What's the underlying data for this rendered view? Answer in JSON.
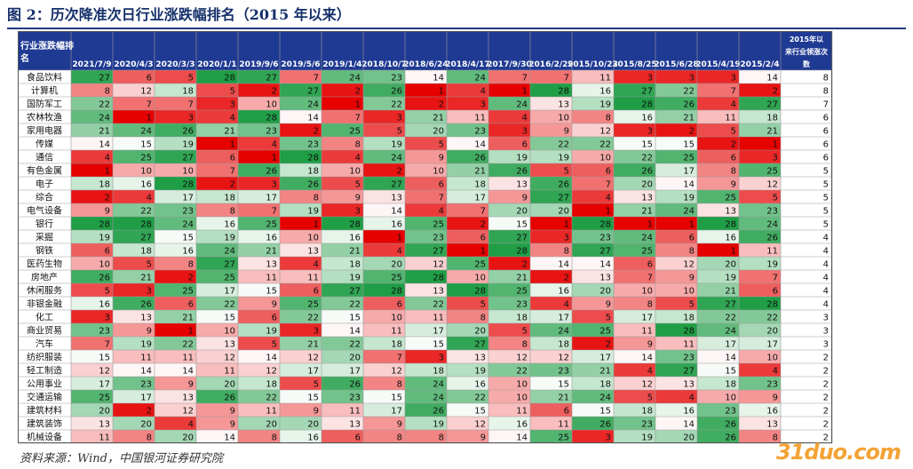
{
  "title": "图 2：历次降准次日行业涨跌幅排名（2015 年以来）",
  "source": "资料来源：Wind，中国银河证券研究院",
  "watermark": "31duo.com",
  "colors": {
    "header_bg": "#1f3a93",
    "rank_top": "#e60000",
    "rank_bottom": "#1f9e46",
    "rank_mid": "#ffffff"
  },
  "chart_data": {
    "type": "table",
    "corner_header": "行业涨跌幅排名",
    "last_header": "2015年以来行业领涨次数",
    "dates": [
      "2021/7/9",
      "2020/4/3",
      "2020/3/3",
      "2020/1/1",
      "2019/9/6",
      "2019/5/6",
      "2019/1/4",
      "2018/10/7",
      "2018/6/24",
      "2018/4/17",
      "2017/9/30",
      "2016/2/29",
      "2015/10/23",
      "2015/8/25",
      "2015/6/28",
      "2015/4/19",
      "2015/2/4"
    ],
    "rows": [
      {
        "industry": "食品饮料",
        "ranks": [
          27,
          6,
          5,
          28,
          27,
          7,
          24,
          23,
          14,
          24,
          7,
          7,
          11,
          3,
          3,
          3,
          14
        ],
        "count": 8
      },
      {
        "industry": "计算机",
        "ranks": [
          8,
          12,
          18,
          5,
          2,
          27,
          2,
          26,
          1,
          4,
          1,
          28,
          16,
          27,
          22,
          7,
          2
        ],
        "count": 8
      },
      {
        "industry": "国防军工",
        "ranks": [
          22,
          7,
          7,
          3,
          10,
          24,
          1,
          22,
          2,
          3,
          24,
          13,
          19,
          28,
          26,
          4,
          27
        ],
        "count": 7
      },
      {
        "industry": "农林牧渔",
        "ranks": [
          24,
          1,
          3,
          4,
          28,
          14,
          7,
          3,
          21,
          11,
          4,
          10,
          8,
          16,
          21,
          11,
          18
        ],
        "count": 6
      },
      {
        "industry": "家用电器",
        "ranks": [
          21,
          24,
          26,
          21,
          23,
          2,
          25,
          5,
          20,
          23,
          3,
          9,
          12,
          3,
          2,
          5,
          21
        ],
        "count": 6
      },
      {
        "industry": "传媒",
        "ranks": [
          14,
          15,
          19,
          1,
          4,
          23,
          8,
          19,
          5,
          14,
          6,
          22,
          22,
          15,
          15,
          2,
          1
        ],
        "count": 6
      },
      {
        "industry": "通信",
        "ranks": [
          4,
          25,
          27,
          6,
          1,
          28,
          4,
          24,
          9,
          26,
          19,
          19,
          10,
          22,
          25,
          6,
          3
        ],
        "count": 6
      },
      {
        "industry": "有色金属",
        "ranks": [
          1,
          10,
          10,
          7,
          26,
          18,
          10,
          2,
          10,
          21,
          26,
          5,
          6,
          26,
          17,
          8,
          25
        ],
        "count": 5
      },
      {
        "industry": "电子",
        "ranks": [
          18,
          16,
          28,
          2,
          3,
          26,
          5,
          27,
          6,
          18,
          13,
          26,
          7,
          20,
          14,
          9,
          12
        ],
        "count": 5
      },
      {
        "industry": "综合",
        "ranks": [
          2,
          4,
          17,
          18,
          17,
          8,
          9,
          13,
          7,
          17,
          9,
          27,
          4,
          13,
          19,
          25,
          5
        ],
        "count": 5
      },
      {
        "industry": "电气设备",
        "ranks": [
          9,
          22,
          23,
          8,
          7,
          19,
          3,
          14,
          4,
          7,
          20,
          20,
          1,
          21,
          24,
          13,
          23
        ],
        "count": 5
      },
      {
        "industry": "银行",
        "ranks": [
          28,
          28,
          24,
          16,
          25,
          1,
          28,
          16,
          25,
          2,
          15,
          1,
          28,
          1,
          1,
          28,
          24
        ],
        "count": 5
      },
      {
        "industry": "采掘",
        "ranks": [
          19,
          27,
          15,
          19,
          16,
          10,
          16,
          1,
          23,
          6,
          27,
          3,
          23,
          24,
          6,
          16,
          26
        ],
        "count": 4
      },
      {
        "industry": "钢铁",
        "ranks": [
          6,
          18,
          16,
          24,
          21,
          13,
          21,
          4,
          27,
          1,
          28,
          8,
          27,
          25,
          8,
          1,
          11
        ],
        "count": 4
      },
      {
        "industry": "医药生物",
        "ranks": [
          10,
          5,
          8,
          27,
          13,
          4,
          18,
          20,
          12,
          25,
          2,
          14,
          14,
          6,
          12,
          20,
          19
        ],
        "count": 4
      },
      {
        "industry": "房地产",
        "ranks": [
          26,
          21,
          2,
          25,
          11,
          11,
          19,
          25,
          28,
          10,
          21,
          2,
          13,
          7,
          9,
          19,
          7
        ],
        "count": 4
      },
      {
        "industry": "休闲服务",
        "ranks": [
          5,
          3,
          25,
          17,
          15,
          6,
          27,
          28,
          13,
          28,
          25,
          16,
          20,
          10,
          10,
          21,
          6
        ],
        "count": 4
      },
      {
        "industry": "非银金融",
        "ranks": [
          16,
          26,
          6,
          22,
          9,
          25,
          22,
          6,
          22,
          5,
          23,
          4,
          9,
          8,
          5,
          27,
          28
        ],
        "count": 4
      },
      {
        "industry": "化工",
        "ranks": [
          3,
          13,
          21,
          15,
          6,
          22,
          15,
          10,
          11,
          8,
          18,
          17,
          5,
          17,
          18,
          22,
          22
        ],
        "count": 3
      },
      {
        "industry": "商业贸易",
        "ranks": [
          23,
          9,
          1,
          10,
          19,
          3,
          14,
          11,
          17,
          20,
          5,
          24,
          25,
          11,
          28,
          24,
          20
        ],
        "count": 3
      },
      {
        "industry": "汽车",
        "ranks": [
          7,
          19,
          22,
          13,
          5,
          21,
          22,
          18,
          15,
          27,
          8,
          18,
          2,
          9,
          11,
          17,
          17
        ],
        "count": 3
      },
      {
        "industry": "纺织服装",
        "ranks": [
          15,
          11,
          11,
          12,
          14,
          12,
          20,
          7,
          3,
          13,
          12,
          12,
          17,
          14,
          23,
          14,
          10
        ],
        "count": 2
      },
      {
        "industry": "轻工制造",
        "ranks": [
          12,
          14,
          14,
          11,
          12,
          17,
          17,
          12,
          18,
          19,
          22,
          23,
          21,
          4,
          27,
          15,
          4
        ],
        "count": 2
      },
      {
        "industry": "公用事业",
        "ranks": [
          17,
          23,
          9,
          20,
          18,
          5,
          26,
          8,
          24,
          16,
          10,
          15,
          18,
          12,
          13,
          18,
          23
        ],
        "count": 2
      },
      {
        "industry": "交通运输",
        "ranks": [
          25,
          17,
          13,
          26,
          22,
          15,
          23,
          15,
          24,
          22,
          10,
          21,
          24,
          5,
          4,
          10,
          9
        ],
        "count": 2
      },
      {
        "industry": "建筑材料",
        "ranks": [
          20,
          2,
          12,
          9,
          11,
          9,
          11,
          17,
          26,
          15,
          11,
          6,
          15,
          18,
          16,
          23,
          16
        ],
        "count": 2
      },
      {
        "industry": "建筑装饰",
        "ranks": [
          13,
          20,
          4,
          9,
          20,
          20,
          13,
          9,
          19,
          12,
          16,
          11,
          26,
          23,
          14,
          26,
          13
        ],
        "count": 2
      },
      {
        "industry": "机械设备",
        "ranks": [
          11,
          8,
          20,
          14,
          8,
          16,
          6,
          8,
          8,
          9,
          14,
          25,
          3,
          19,
          20,
          26,
          8
        ],
        "count": 2
      }
    ]
  }
}
